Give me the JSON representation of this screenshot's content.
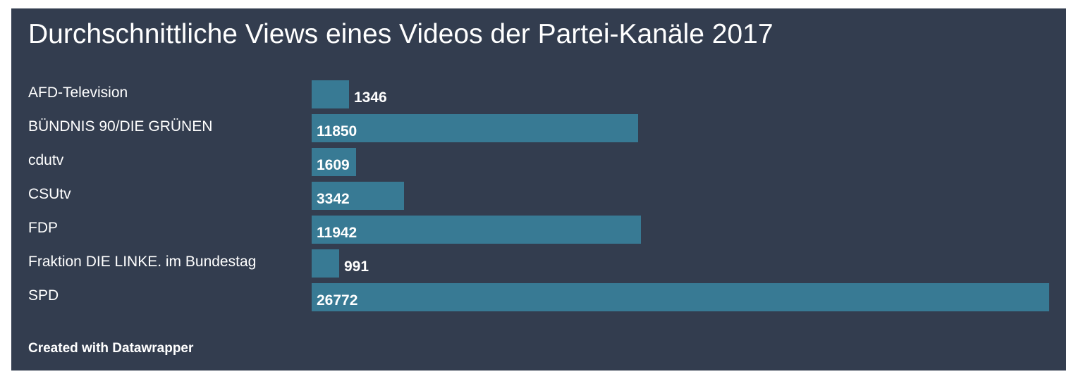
{
  "chart_data": {
    "type": "bar",
    "orientation": "horizontal",
    "title": "Durchschnittliche Views eines Videos der Partei-Kanäle 2017",
    "categories": [
      "AFD-Television",
      "BÜNDNIS 90/DIE GRÜNEN",
      "cdutv",
      "CSUtv",
      "FDP",
      "Fraktion DIE LINKE. im Bundestag",
      "SPD"
    ],
    "values": [
      1346,
      11850,
      1609,
      3342,
      11942,
      991,
      26772
    ],
    "xlim": [
      0,
      26772
    ],
    "grid": false,
    "legend": "none",
    "colors": {
      "background": "#333d4f",
      "bar": "#387a94",
      "text": "#ffffff"
    }
  },
  "footer": {
    "credit": "Created with Datawrapper"
  }
}
